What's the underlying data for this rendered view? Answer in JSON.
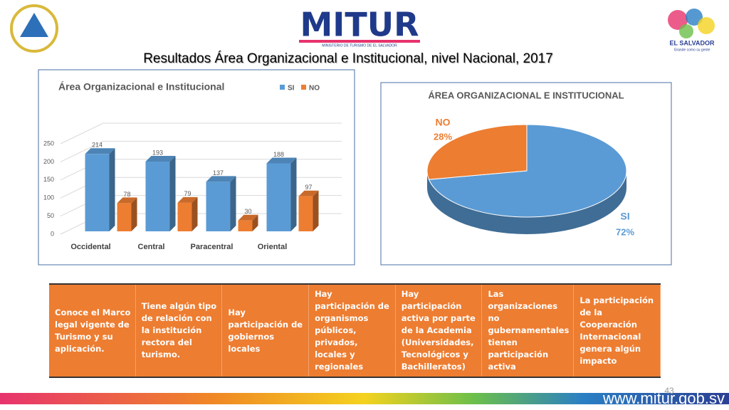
{
  "header": {
    "logo": "MITUR",
    "logo_subtitle": "MINISTERIO DE TURISMO DE EL SALVADOR",
    "brand": "EL SALVADOR",
    "brand_tagline": "Grande como su gente",
    "title": "Resultados Área Organizacional e Institucional, nivel Nacional, 2017"
  },
  "chart_data": [
    {
      "type": "bar",
      "title": "Área Organizacional e Institucional",
      "categories": [
        "Occidental",
        "Central",
        "Paracentral",
        "Oriental"
      ],
      "series": [
        {
          "name": "SI",
          "color": "#5b9bd5",
          "values": [
            214,
            193,
            137,
            188
          ]
        },
        {
          "name": "NO",
          "color": "#ed7d31",
          "values": [
            78,
            79,
            30,
            97
          ]
        }
      ],
      "ylim": [
        0,
        250
      ],
      "yticks": [
        0,
        50,
        100,
        150,
        200,
        250
      ],
      "grid": true,
      "legend": "top-right"
    },
    {
      "type": "pie",
      "title": "ÁREA ORGANIZACIONAL E INSTITUCIONAL",
      "categories": [
        "SI",
        "NO"
      ],
      "values": [
        72,
        28
      ],
      "value_labels": [
        "72%",
        "28%"
      ],
      "colors": [
        "#5b9bd5",
        "#ed7d31"
      ]
    }
  ],
  "table": {
    "rows": [
      [
        "Conoce el Marco legal vigente de Turismo y su aplicación.",
        "Tiene algún tipo de relación con la institución rectora del turismo.",
        "Hay participación de gobiernos locales",
        "Hay participación de organismos públicos, privados, locales y regionales",
        "Hay participación activa por parte de la Academia (Universidades, Tecnológicos y Bachilleratos)",
        "Las organizaciones no gubernamentales tienen participación activa",
        "La participación de la Cooperación Internacional genera algún impacto"
      ]
    ]
  },
  "footer": {
    "page_number": "43",
    "url": "www.mitur.gob.sv"
  }
}
